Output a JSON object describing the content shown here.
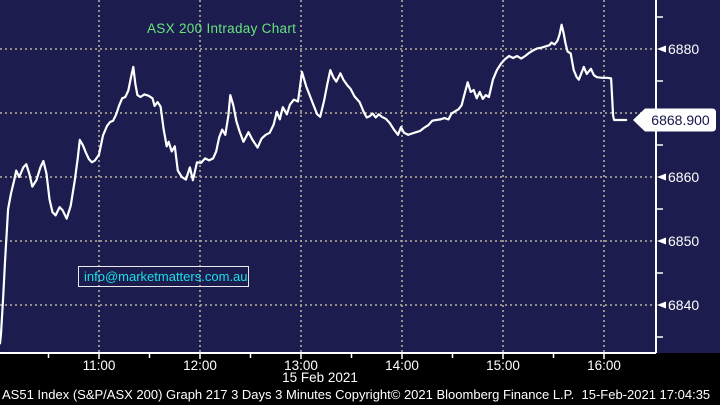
{
  "title": "ASX 200 Intraday Chart",
  "watermark": "info@marketmatters.com.au",
  "price_tag": "6868.900",
  "date_label": "15 Feb 2021",
  "footer": "AS51 Index (S&P/ASX 200) Graph 217 3 Days 3 Minutes Copyright© 2021 Bloomberg Finance L.P.  15-Feb-2021 17:04:35",
  "colors": {
    "background": "#000000",
    "plot_bg": "#1c1c4e",
    "grid": "#a29f92",
    "line": "#ffffff",
    "title_green": "#66e57d",
    "watermark_cyan": "#18dfe8",
    "axis_text": "#ffffff",
    "tag_bg": "#ffffff",
    "tag_text": "#15154a"
  },
  "chart_data": {
    "type": "line",
    "title": "ASX 200 Intraday Chart",
    "xlabel": "15 Feb 2021",
    "ylabel": "",
    "x_unit": "decimal_hour_of_day",
    "xlim": [
      10.0,
      16.3
    ],
    "ylim": [
      6832,
      6888
    ],
    "grid": true,
    "legend_position": "none",
    "x_ticks": [
      11,
      12,
      13,
      14,
      15,
      16
    ],
    "x_tick_labels": [
      "11:00",
      "12:00",
      "13:00",
      "14:00",
      "15:00",
      "16:00"
    ],
    "x_minor_ticks": [
      10.5,
      11.5,
      12.5,
      13.5,
      14.5,
      15.5
    ],
    "y_ticks": [
      6880,
      6870,
      6860,
      6850,
      6840
    ],
    "y_minor_ticks": [
      6885,
      6875,
      6865,
      6855,
      6845,
      6835
    ],
    "last_price": 6868.9,
    "session_high": 6883.8,
    "session_low": 6834,
    "series": [
      {
        "name": "AS51 Index (S&P/ASX 200)",
        "color": "#ffffff",
        "points": [
          [
            10.02,
            6834
          ],
          [
            10.03,
            6835.5
          ],
          [
            10.05,
            6841
          ],
          [
            10.07,
            6847
          ],
          [
            10.1,
            6855
          ],
          [
            10.13,
            6857.5
          ],
          [
            10.16,
            6859.5
          ],
          [
            10.18,
            6861
          ],
          [
            10.21,
            6860
          ],
          [
            10.25,
            6861.5
          ],
          [
            10.28,
            6862
          ],
          [
            10.31,
            6860.5
          ],
          [
            10.34,
            6858.5
          ],
          [
            10.38,
            6859.5
          ],
          [
            10.42,
            6861.5
          ],
          [
            10.45,
            6862.5
          ],
          [
            10.48,
            6860.5
          ],
          [
            10.51,
            6856.5
          ],
          [
            10.54,
            6854.5
          ],
          [
            10.57,
            6854
          ],
          [
            10.61,
            6855.3
          ],
          [
            10.64,
            6854.8
          ],
          [
            10.68,
            6853.5
          ],
          [
            10.72,
            6855.5
          ],
          [
            10.76,
            6859.5
          ],
          [
            10.79,
            6863
          ],
          [
            10.81,
            6865.8
          ],
          [
            10.84,
            6865
          ],
          [
            10.87,
            6863.8
          ],
          [
            10.9,
            6862.8
          ],
          [
            10.93,
            6862.3
          ],
          [
            10.96,
            6862.6
          ],
          [
            11.0,
            6863.5
          ],
          [
            11.04,
            6866.5
          ],
          [
            11.08,
            6868
          ],
          [
            11.11,
            6868.6
          ],
          [
            11.14,
            6868.8
          ],
          [
            11.17,
            6869.8
          ],
          [
            11.2,
            6871.2
          ],
          [
            11.23,
            6872.3
          ],
          [
            11.26,
            6872.5
          ],
          [
            11.29,
            6873.5
          ],
          [
            11.32,
            6875.8
          ],
          [
            11.34,
            6877.2
          ],
          [
            11.36,
            6874.5
          ],
          [
            11.38,
            6872.8
          ],
          [
            11.41,
            6872.5
          ],
          [
            11.45,
            6872.9
          ],
          [
            11.49,
            6872.7
          ],
          [
            11.53,
            6872.3
          ],
          [
            11.55,
            6871.1
          ],
          [
            11.58,
            6871.7
          ],
          [
            11.61,
            6871
          ],
          [
            11.64,
            6867.5
          ],
          [
            11.67,
            6864.8
          ],
          [
            11.69,
            6865.5
          ],
          [
            11.72,
            6864
          ],
          [
            11.75,
            6864.8
          ],
          [
            11.78,
            6861
          ],
          [
            11.82,
            6860
          ],
          [
            11.86,
            6859.6
          ],
          [
            11.9,
            6861.5
          ],
          [
            11.93,
            6859.5
          ],
          [
            11.97,
            6862.3
          ],
          [
            12.01,
            6862.2
          ],
          [
            12.05,
            6862.9
          ],
          [
            12.09,
            6862.6
          ],
          [
            12.13,
            6862.9
          ],
          [
            12.16,
            6864
          ],
          [
            12.19,
            6866.2
          ],
          [
            12.22,
            6867.4
          ],
          [
            12.25,
            6866.6
          ],
          [
            12.28,
            6869.5
          ],
          [
            12.3,
            6872.8
          ],
          [
            12.33,
            6871.2
          ],
          [
            12.36,
            6868.7
          ],
          [
            12.39,
            6867.2
          ],
          [
            12.43,
            6865.5
          ],
          [
            12.48,
            6867
          ],
          [
            12.52,
            6865.8
          ],
          [
            12.57,
            6864.6
          ],
          [
            12.61,
            6866
          ],
          [
            12.65,
            6866.6
          ],
          [
            12.69,
            6866.9
          ],
          [
            12.73,
            6868.2
          ],
          [
            12.76,
            6870.2
          ],
          [
            12.79,
            6869
          ],
          [
            12.82,
            6870.9
          ],
          [
            12.86,
            6869.8
          ],
          [
            12.89,
            6871.3
          ],
          [
            12.93,
            6872.1
          ],
          [
            12.97,
            6871.8
          ],
          [
            13.01,
            6876.4
          ],
          [
            13.05,
            6874.2
          ],
          [
            13.09,
            6872.6
          ],
          [
            13.13,
            6871
          ],
          [
            13.16,
            6869.8
          ],
          [
            13.19,
            6869.4
          ],
          [
            13.23,
            6872
          ],
          [
            13.26,
            6874.5
          ],
          [
            13.29,
            6876.7
          ],
          [
            13.32,
            6875.6
          ],
          [
            13.35,
            6874.9
          ],
          [
            13.39,
            6876.2
          ],
          [
            13.42,
            6875.2
          ],
          [
            13.46,
            6874.3
          ],
          [
            13.49,
            6873.8
          ],
          [
            13.53,
            6872.6
          ],
          [
            13.58,
            6871.7
          ],
          [
            13.62,
            6870.2
          ],
          [
            13.65,
            6869.3
          ],
          [
            13.68,
            6869.5
          ],
          [
            13.71,
            6869.9
          ],
          [
            13.74,
            6869.3
          ],
          [
            13.77,
            6869.8
          ],
          [
            13.8,
            6869.4
          ],
          [
            13.84,
            6869.1
          ],
          [
            13.88,
            6868.4
          ],
          [
            13.92,
            6867.4
          ],
          [
            13.96,
            6866.6
          ],
          [
            13.99,
            6867.8
          ],
          [
            14.02,
            6866.9
          ],
          [
            14.06,
            6866.6
          ],
          [
            14.1,
            6866.8
          ],
          [
            14.14,
            6867
          ],
          [
            14.18,
            6867.2
          ],
          [
            14.22,
            6867.7
          ],
          [
            14.26,
            6868.1
          ],
          [
            14.3,
            6868.8
          ],
          [
            14.34,
            6868.9
          ],
          [
            14.38,
            6869
          ],
          [
            14.42,
            6869.2
          ],
          [
            14.46,
            6869
          ],
          [
            14.49,
            6869.9
          ],
          [
            14.53,
            6870.3
          ],
          [
            14.56,
            6870.6
          ],
          [
            14.59,
            6871.2
          ],
          [
            14.62,
            6873
          ],
          [
            14.65,
            6874.8
          ],
          [
            14.68,
            6873.3
          ],
          [
            14.71,
            6873.6
          ],
          [
            14.74,
            6872.3
          ],
          [
            14.77,
            6873.3
          ],
          [
            14.8,
            6872.2
          ],
          [
            14.83,
            6872.8
          ],
          [
            14.86,
            6872.5
          ],
          [
            14.9,
            6875.2
          ],
          [
            14.94,
            6876.7
          ],
          [
            14.98,
            6877.7
          ],
          [
            15.02,
            6878.4
          ],
          [
            15.06,
            6878.9
          ],
          [
            15.1,
            6878.6
          ],
          [
            15.14,
            6878.9
          ],
          [
            15.18,
            6878.5
          ],
          [
            15.22,
            6878.9
          ],
          [
            15.26,
            6879.4
          ],
          [
            15.3,
            6879.8
          ],
          [
            15.34,
            6880.1
          ],
          [
            15.38,
            6880.2
          ],
          [
            15.42,
            6880.4
          ],
          [
            15.46,
            6880.6
          ],
          [
            15.48,
            6881
          ],
          [
            15.51,
            6880.7
          ],
          [
            15.54,
            6881.3
          ],
          [
            15.56,
            6882.3
          ],
          [
            15.58,
            6883.8
          ],
          [
            15.6,
            6882.5
          ],
          [
            15.62,
            6880.8
          ],
          [
            15.64,
            6879.6
          ],
          [
            15.67,
            6879.3
          ],
          [
            15.7,
            6876.7
          ],
          [
            15.73,
            6875.6
          ],
          [
            15.75,
            6875.2
          ],
          [
            15.8,
            6877.2
          ],
          [
            15.83,
            6876.1
          ],
          [
            15.87,
            6876.9
          ],
          [
            15.9,
            6875.9
          ],
          [
            15.93,
            6875.6
          ],
          [
            15.98,
            6875.5
          ],
          [
            16.03,
            6875.5
          ],
          [
            16.07,
            6875.4
          ],
          [
            16.09,
            6869.6
          ],
          [
            16.1,
            6868.9
          ],
          [
            16.16,
            6868.9
          ],
          [
            16.22,
            6868.9
          ]
        ]
      }
    ]
  }
}
